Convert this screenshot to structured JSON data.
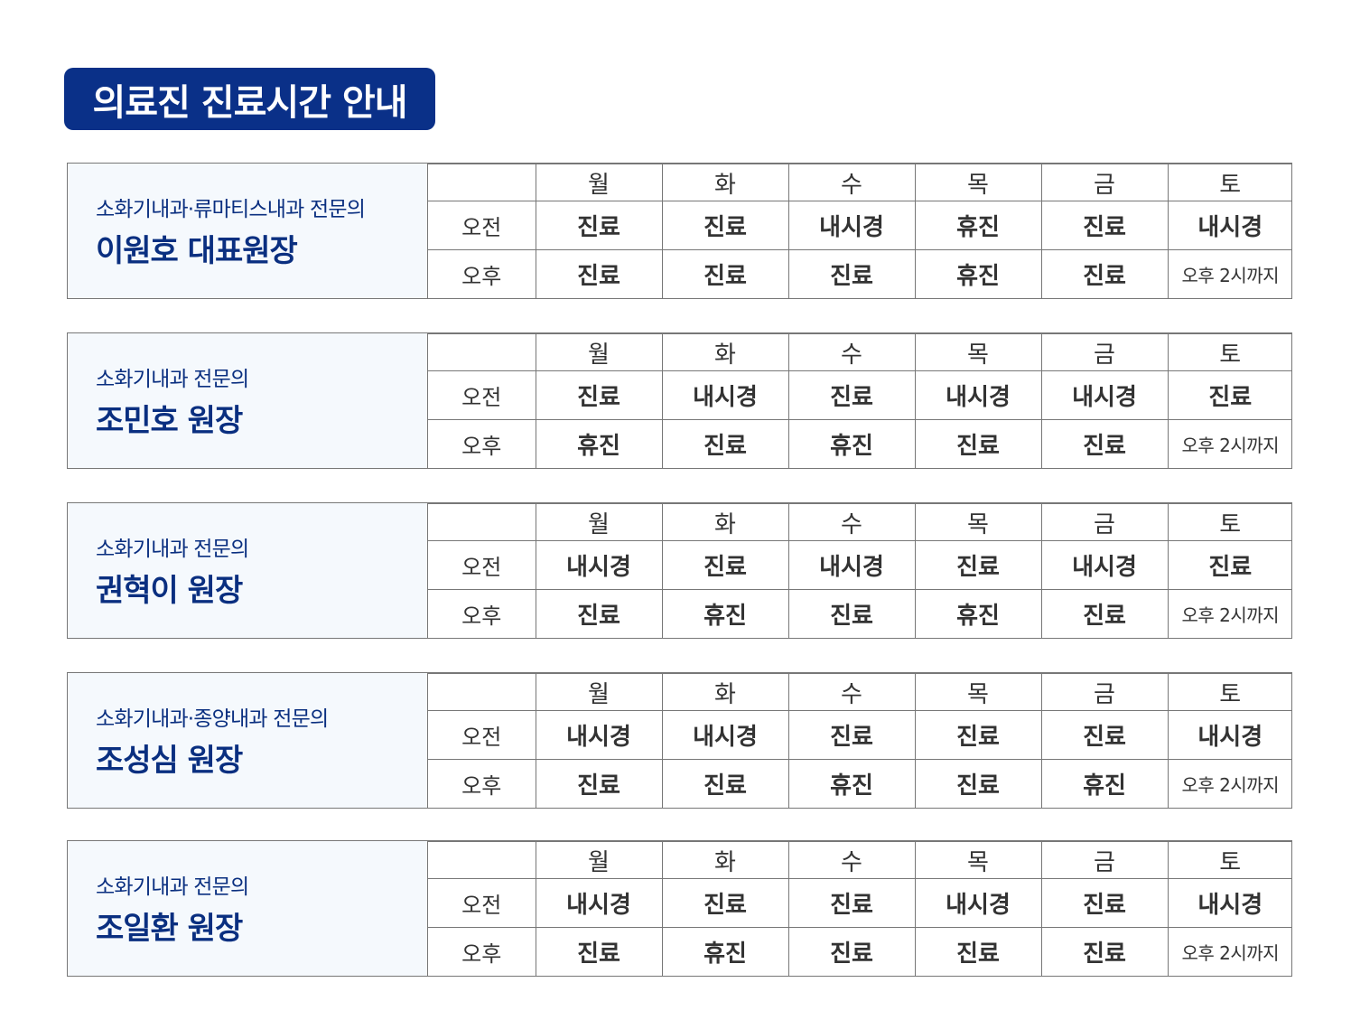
{
  "title": "의료진 진료시간 안내",
  "colors": {
    "title_bg": "#0a3088",
    "name": "#0a2f80",
    "info_bg": "#f5f9fd",
    "hyujin": "#b4185c",
    "naesigyeong_blue": "#1f78d6",
    "naesigyeong_magenta": "#e0147e"
  },
  "days": [
    "월",
    "화",
    "수",
    "목",
    "금",
    "토"
  ],
  "periods": {
    "am": "오전",
    "pm": "오후"
  },
  "doctors": [
    {
      "dept": "소화기내과·류마티스내과 전문의",
      "name": "이원호 대표원장",
      "am": [
        {
          "t": "진료",
          "s": "jinryo"
        },
        {
          "t": "진료",
          "s": "jinryo"
        },
        {
          "t": "내시경",
          "s": "magenta"
        },
        {
          "t": "휴진",
          "s": "hyujin"
        },
        {
          "t": "진료",
          "s": "jinryo"
        },
        {
          "t": "내시경",
          "s": "blue"
        }
      ],
      "pm": [
        {
          "t": "진료",
          "s": "jinryo"
        },
        {
          "t": "진료",
          "s": "jinryo"
        },
        {
          "t": "진료",
          "s": "jinryo"
        },
        {
          "t": "휴진",
          "s": "hyujin"
        },
        {
          "t": "진료",
          "s": "jinryo"
        },
        {
          "t": "오후 2시까지",
          "s": "note"
        }
      ]
    },
    {
      "dept": "소화기내과 전문의",
      "name": "조민호 원장",
      "am": [
        {
          "t": "진료",
          "s": "jinryo"
        },
        {
          "t": "내시경",
          "s": "blue"
        },
        {
          "t": "진료",
          "s": "jinryo"
        },
        {
          "t": "내시경",
          "s": "magenta"
        },
        {
          "t": "내시경",
          "s": "blue"
        },
        {
          "t": "진료",
          "s": "jinryo"
        }
      ],
      "pm": [
        {
          "t": "휴진",
          "s": "hyujin"
        },
        {
          "t": "진료",
          "s": "jinryo"
        },
        {
          "t": "휴진",
          "s": "hyujin"
        },
        {
          "t": "진료",
          "s": "jinryo"
        },
        {
          "t": "진료",
          "s": "jinryo"
        },
        {
          "t": "오후 2시까지",
          "s": "note"
        }
      ]
    },
    {
      "dept": "소화기내과 전문의",
      "name": "권혁이 원장",
      "am": [
        {
          "t": "내시경",
          "s": "blue"
        },
        {
          "t": "진료",
          "s": "jinryo"
        },
        {
          "t": "내시경",
          "s": "blue"
        },
        {
          "t": "진료",
          "s": "jinryo"
        },
        {
          "t": "내시경",
          "s": "magenta"
        },
        {
          "t": "진료",
          "s": "jinryo"
        }
      ],
      "pm": [
        {
          "t": "진료",
          "s": "jinryo"
        },
        {
          "t": "휴진",
          "s": "hyujin"
        },
        {
          "t": "진료",
          "s": "jinryo"
        },
        {
          "t": "휴진",
          "s": "hyujin"
        },
        {
          "t": "진료",
          "s": "jinryo"
        },
        {
          "t": "오후 2시까지",
          "s": "note"
        }
      ]
    },
    {
      "dept": "소화기내과·종양내과 전문의",
      "name": "조성심 원장",
      "am": [
        {
          "t": "내시경",
          "s": "blue"
        },
        {
          "t": "내시경",
          "s": "magenta"
        },
        {
          "t": "진료",
          "s": "jinryo"
        },
        {
          "t": "진료",
          "s": "jinryo"
        },
        {
          "t": "진료",
          "s": "jinryo"
        },
        {
          "t": "내시경",
          "s": "blue"
        }
      ],
      "pm": [
        {
          "t": "진료",
          "s": "jinryo"
        },
        {
          "t": "진료",
          "s": "jinryo"
        },
        {
          "t": "휴진",
          "s": "hyujin"
        },
        {
          "t": "진료",
          "s": "jinryo"
        },
        {
          "t": "휴진",
          "s": "hyujin"
        },
        {
          "t": "오후 2시까지",
          "s": "note"
        }
      ]
    },
    {
      "dept": "소화기내과 전문의",
      "name": "조일환 원장",
      "am": [
        {
          "t": "내시경",
          "s": "magenta"
        },
        {
          "t": "진료",
          "s": "jinryo"
        },
        {
          "t": "진료",
          "s": "jinryo"
        },
        {
          "t": "내시경",
          "s": "blue"
        },
        {
          "t": "진료",
          "s": "jinryo"
        },
        {
          "t": "내시경",
          "s": "magenta"
        }
      ],
      "pm": [
        {
          "t": "진료",
          "s": "jinryo"
        },
        {
          "t": "휴진",
          "s": "hyujin"
        },
        {
          "t": "진료",
          "s": "jinryo"
        },
        {
          "t": "진료",
          "s": "jinryo"
        },
        {
          "t": "진료",
          "s": "jinryo"
        },
        {
          "t": "오후 2시까지",
          "s": "note"
        }
      ]
    }
  ]
}
